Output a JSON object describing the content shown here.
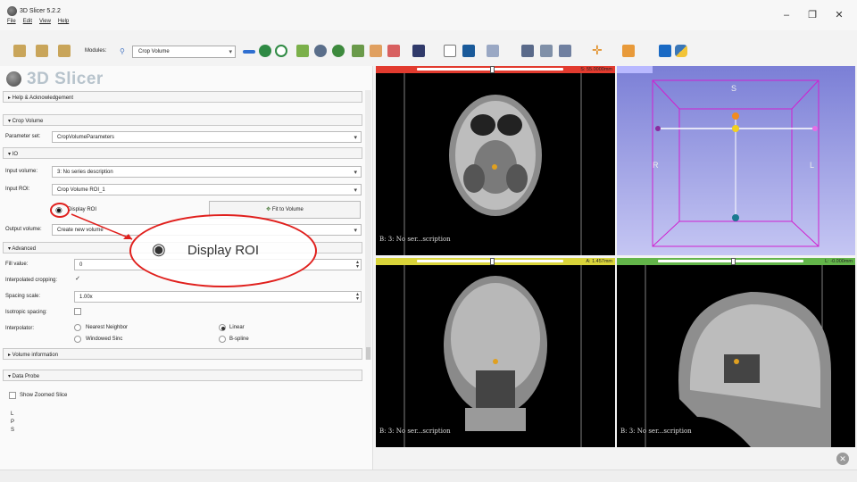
{
  "window": {
    "title": "3D Slicer 5.2.2",
    "min": "–",
    "max": "❐",
    "close": "✕"
  },
  "menu": [
    "File",
    "Edit",
    "View",
    "Help"
  ],
  "toolbar": {
    "modules_label": "Modules:",
    "module_selected": "Crop Volume"
  },
  "logo": "3D Slicer",
  "sections": {
    "help": "▸ Help & Acknowledgement",
    "crop": "▾ Crop Volume",
    "io": "▾ IO",
    "advanced": "▾ Advanced",
    "volume_info": "▸ Volume information",
    "data_probe": "▾ Data Probe"
  },
  "parameter_set": {
    "label": "Parameter set:",
    "value": "CropVolumeParameters"
  },
  "input_volume": {
    "label": "Input volume:",
    "value": "3: No series description"
  },
  "input_roi": {
    "label": "Input ROI:",
    "value": "Crop Volume ROI_1"
  },
  "display_roi": {
    "label": "Display ROI"
  },
  "fit_to_volume": {
    "label": "Fit to Volume"
  },
  "output_volume": {
    "label": "Output volume:",
    "value": "Create new volume"
  },
  "fill_value": {
    "label": "Fill value:",
    "value": "0"
  },
  "interpolated_cropping": {
    "label": "Interpolated cropping:",
    "checked": true
  },
  "spacing_scale": {
    "label": "Spacing scale:",
    "value": "1.00x"
  },
  "isotropic_spacing": {
    "label": "Isotropic spacing:",
    "checked": false
  },
  "interpolator": {
    "label": "Interpolator:",
    "options": [
      "Nearest Neighbor",
      "Linear",
      "Windowed Sinc",
      "B-spline"
    ],
    "selected": "Linear"
  },
  "data_probe": {
    "show_zoomed": "Show Zoomed Slice",
    "coords": [
      "L",
      "P",
      "S"
    ]
  },
  "callout": {
    "text": "Display ROI"
  },
  "views": {
    "red": {
      "readout": "S: 55.0000mm",
      "label": "B: 3: No ser...scription",
      "color": "#e23b2f"
    },
    "yellow": {
      "readout": "L: -0.000mm",
      "label": "B: 3: No ser...scription",
      "color": "#d9d43a"
    },
    "green": {
      "readout": "A: 1.457mm",
      "label": "B: 3: No ser...scription",
      "color": "#63b54a"
    },
    "three_d": {
      "orient": {
        "S": "S",
        "R": "R",
        "L": "L"
      },
      "color": "#c8c8ff"
    }
  }
}
